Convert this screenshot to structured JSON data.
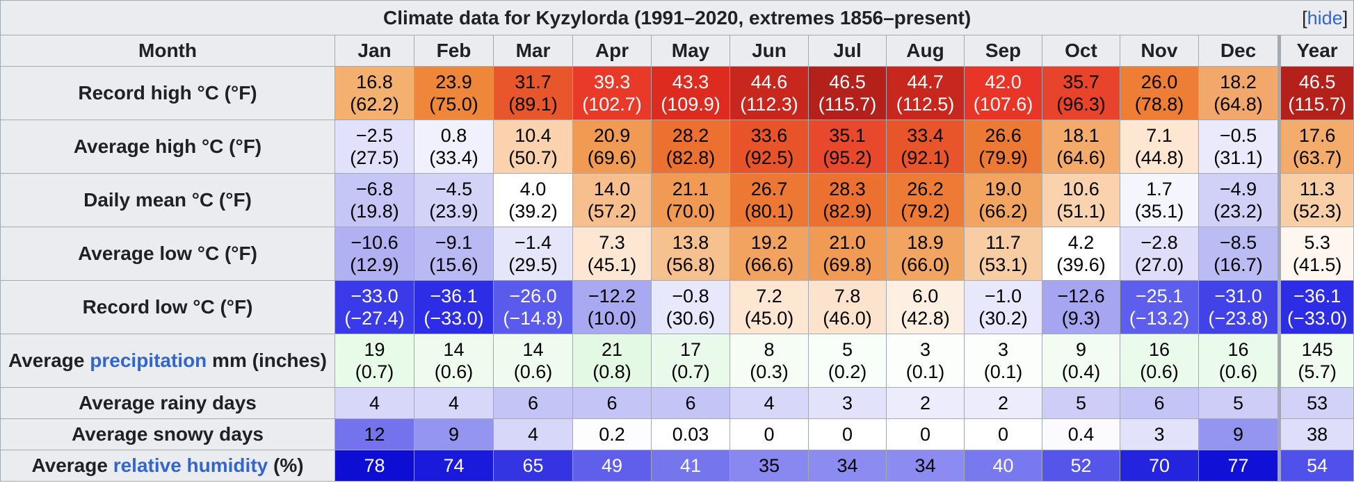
{
  "caption": {
    "title": "Climate data for Kyzylorda (1991–2020, extremes 1856–present)",
    "hide_open": "[",
    "hide_label": "hide",
    "hide_close": "]"
  },
  "header": {
    "month_label": "Month",
    "months": [
      "Jan",
      "Feb",
      "Mar",
      "Apr",
      "May",
      "Jun",
      "Jul",
      "Aug",
      "Sep",
      "Oct",
      "Nov",
      "Dec",
      "Year"
    ]
  },
  "rows": [
    {
      "id": "record-high",
      "label_parts": [
        {
          "t": "Record high °C (°F)",
          "link": false
        }
      ],
      "kind": "temp",
      "cells": [
        {
          "v": "16.8",
          "f": "(62.2)",
          "bg": "#f4b06f",
          "fg": "#000000"
        },
        {
          "v": "23.9",
          "f": "(75.0)",
          "bg": "#ee8739",
          "fg": "#000000"
        },
        {
          "v": "31.7",
          "f": "(89.1)",
          "bg": "#e8562c",
          "fg": "#000000"
        },
        {
          "v": "39.3",
          "f": "(102.7)",
          "bg": "#e93a29",
          "fg": "#ffffff"
        },
        {
          "v": "43.3",
          "f": "(109.9)",
          "bg": "#dd2b1f",
          "fg": "#ffffff"
        },
        {
          "v": "44.6",
          "f": "(112.3)",
          "bg": "#c8271d",
          "fg": "#ffffff"
        },
        {
          "v": "46.5",
          "f": "(115.7)",
          "bg": "#b3211a",
          "fg": "#ffffff"
        },
        {
          "v": "44.7",
          "f": "(112.5)",
          "bg": "#c8271d",
          "fg": "#ffffff"
        },
        {
          "v": "42.0",
          "f": "(107.6)",
          "bg": "#e93528",
          "fg": "#ffffff"
        },
        {
          "v": "35.7",
          "f": "(96.3)",
          "bg": "#e8432b",
          "fg": "#000000"
        },
        {
          "v": "26.0",
          "f": "(78.8)",
          "bg": "#ee7e35",
          "fg": "#000000"
        },
        {
          "v": "18.2",
          "f": "(64.8)",
          "bg": "#f2a86a",
          "fg": "#000000"
        },
        {
          "v": "46.5",
          "f": "(115.7)",
          "bg": "#b3211a",
          "fg": "#ffffff"
        }
      ]
    },
    {
      "id": "average-high",
      "label_parts": [
        {
          "t": "Average high °C (°F)",
          "link": false
        }
      ],
      "kind": "temp",
      "cells": [
        {
          "v": "−2.5",
          "f": "(27.5)",
          "bg": "#e1e1fb",
          "fg": "#000000"
        },
        {
          "v": "0.8",
          "f": "(33.4)",
          "bg": "#f1f1fd",
          "fg": "#000000"
        },
        {
          "v": "10.4",
          "f": "(50.7)",
          "bg": "#fad2ad",
          "fg": "#000000"
        },
        {
          "v": "20.9",
          "f": "(69.6)",
          "bg": "#f09a53",
          "fg": "#000000"
        },
        {
          "v": "28.2",
          "f": "(82.8)",
          "bg": "#ec7030",
          "fg": "#000000"
        },
        {
          "v": "33.6",
          "f": "(92.5)",
          "bg": "#e8532a",
          "fg": "#000000"
        },
        {
          "v": "35.1",
          "f": "(95.2)",
          "bg": "#e8482b",
          "fg": "#000000"
        },
        {
          "v": "33.4",
          "f": "(92.1)",
          "bg": "#e8552b",
          "fg": "#000000"
        },
        {
          "v": "26.6",
          "f": "(79.9)",
          "bg": "#ed7a34",
          "fg": "#000000"
        },
        {
          "v": "18.1",
          "f": "(64.6)",
          "bg": "#f3aa6a",
          "fg": "#000000"
        },
        {
          "v": "7.1",
          "f": "(44.8)",
          "bg": "#fde7d3",
          "fg": "#000000"
        },
        {
          "v": "−0.5",
          "f": "(31.1)",
          "bg": "#eaeafc",
          "fg": "#000000"
        },
        {
          "v": "17.6",
          "f": "(63.7)",
          "bg": "#f3ac6c",
          "fg": "#000000"
        }
      ]
    },
    {
      "id": "daily-mean",
      "label_parts": [
        {
          "t": "Daily mean °C (°F)",
          "link": false
        }
      ],
      "kind": "temp",
      "cells": [
        {
          "v": "−6.8",
          "f": "(19.8)",
          "bg": "#c5c5f6",
          "fg": "#000000"
        },
        {
          "v": "−4.5",
          "f": "(23.9)",
          "bg": "#d3d3f8",
          "fg": "#000000"
        },
        {
          "v": "4.0",
          "f": "(39.2)",
          "bg": "#ffffff",
          "fg": "#000000"
        },
        {
          "v": "14.0",
          "f": "(57.2)",
          "bg": "#f6bf8d",
          "fg": "#000000"
        },
        {
          "v": "21.1",
          "f": "(70.0)",
          "bg": "#f09a53",
          "fg": "#000000"
        },
        {
          "v": "26.7",
          "f": "(80.1)",
          "bg": "#ed7834",
          "fg": "#000000"
        },
        {
          "v": "28.3",
          "f": "(82.9)",
          "bg": "#ec7030",
          "fg": "#000000"
        },
        {
          "v": "26.2",
          "f": "(79.2)",
          "bg": "#ed7b35",
          "fg": "#000000"
        },
        {
          "v": "19.0",
          "f": "(66.2)",
          "bg": "#f2a561",
          "fg": "#000000"
        },
        {
          "v": "10.6",
          "f": "(51.1)",
          "bg": "#fad3ae",
          "fg": "#000000"
        },
        {
          "v": "1.7",
          "f": "(35.1)",
          "bg": "#f5f5fe",
          "fg": "#000000"
        },
        {
          "v": "−4.9",
          "f": "(23.2)",
          "bg": "#d1d1f8",
          "fg": "#000000"
        },
        {
          "v": "11.3",
          "f": "(52.3)",
          "bg": "#f9cfa7",
          "fg": "#000000"
        }
      ]
    },
    {
      "id": "average-low",
      "label_parts": [
        {
          "t": "Average low °C (°F)",
          "link": false
        }
      ],
      "kind": "temp",
      "cells": [
        {
          "v": "−10.6",
          "f": "(12.9)",
          "bg": "#b0b0f3",
          "fg": "#000000"
        },
        {
          "v": "−9.1",
          "f": "(15.6)",
          "bg": "#b9b9f4",
          "fg": "#000000"
        },
        {
          "v": "−1.4",
          "f": "(29.5)",
          "bg": "#e6e6fb",
          "fg": "#000000"
        },
        {
          "v": "7.3",
          "f": "(45.1)",
          "bg": "#fde6d2",
          "fg": "#000000"
        },
        {
          "v": "13.8",
          "f": "(56.8)",
          "bg": "#f6c08f",
          "fg": "#000000"
        },
        {
          "v": "19.2",
          "f": "(66.6)",
          "bg": "#f2a360",
          "fg": "#000000"
        },
        {
          "v": "21.0",
          "f": "(69.8)",
          "bg": "#f09a53",
          "fg": "#000000"
        },
        {
          "v": "18.9",
          "f": "(66.0)",
          "bg": "#f2a561",
          "fg": "#000000"
        },
        {
          "v": "11.7",
          "f": "(53.1)",
          "bg": "#f8cda4",
          "fg": "#000000"
        },
        {
          "v": "4.2",
          "f": "(39.6)",
          "bg": "#ffffff",
          "fg": "#000000"
        },
        {
          "v": "−2.8",
          "f": "(27.0)",
          "bg": "#dedefa",
          "fg": "#000000"
        },
        {
          "v": "−8.5",
          "f": "(16.7)",
          "bg": "#bcbcf5",
          "fg": "#000000"
        },
        {
          "v": "5.3",
          "f": "(41.5)",
          "bg": "#fff6ef",
          "fg": "#000000"
        }
      ]
    },
    {
      "id": "record-low",
      "label_parts": [
        {
          "t": "Record low °C (°F)",
          "link": false
        }
      ],
      "kind": "temp",
      "cells": [
        {
          "v": "−33.0",
          "f": "(−27.4)",
          "bg": "#3a3ae8",
          "fg": "#ffffff"
        },
        {
          "v": "−36.1",
          "f": "(−33.0)",
          "bg": "#2d2de6",
          "fg": "#ffffff"
        },
        {
          "v": "−26.0",
          "f": "(−14.8)",
          "bg": "#5a5aec",
          "fg": "#ffffff"
        },
        {
          "v": "−12.2",
          "f": "(10.0)",
          "bg": "#a9a9f1",
          "fg": "#000000"
        },
        {
          "v": "−0.8",
          "f": "(30.6)",
          "bg": "#e8e8fc",
          "fg": "#000000"
        },
        {
          "v": "7.2",
          "f": "(45.0)",
          "bg": "#fde6d2",
          "fg": "#000000"
        },
        {
          "v": "7.8",
          "f": "(46.0)",
          "bg": "#fce3cd",
          "fg": "#000000"
        },
        {
          "v": "6.0",
          "f": "(42.8)",
          "bg": "#feefe3",
          "fg": "#000000"
        },
        {
          "v": "−1.0",
          "f": "(30.2)",
          "bg": "#e8e8fc",
          "fg": "#000000"
        },
        {
          "v": "−12.6",
          "f": "(9.3)",
          "bg": "#a5a5f1",
          "fg": "#000000"
        },
        {
          "v": "−25.1",
          "f": "(−13.2)",
          "bg": "#5e5eec",
          "fg": "#ffffff"
        },
        {
          "v": "−31.0",
          "f": "(−23.8)",
          "bg": "#4242e9",
          "fg": "#ffffff"
        },
        {
          "v": "−36.1",
          "f": "(−33.0)",
          "bg": "#2d2de6",
          "fg": "#ffffff"
        }
      ]
    },
    {
      "id": "precipitation",
      "label_parts": [
        {
          "t": "Average ",
          "link": false
        },
        {
          "t": "precipitation",
          "link": true
        },
        {
          "t": " mm (inches)",
          "link": false
        }
      ],
      "kind": "temp",
      "cells": [
        {
          "v": "19",
          "f": "(0.7)",
          "bg": "#e8fae8",
          "fg": "#000000"
        },
        {
          "v": "14",
          "f": "(0.6)",
          "bg": "#eefbee",
          "fg": "#000000"
        },
        {
          "v": "14",
          "f": "(0.6)",
          "bg": "#eefbee",
          "fg": "#000000"
        },
        {
          "v": "21",
          "f": "(0.8)",
          "bg": "#e4f9e4",
          "fg": "#000000"
        },
        {
          "v": "17",
          "f": "(0.7)",
          "bg": "#eafaea",
          "fg": "#000000"
        },
        {
          "v": "8",
          "f": "(0.3)",
          "bg": "#f5fdf5",
          "fg": "#000000"
        },
        {
          "v": "5",
          "f": "(0.2)",
          "bg": "#f8fef8",
          "fg": "#000000"
        },
        {
          "v": "3",
          "f": "(0.1)",
          "bg": "#fbfefb",
          "fg": "#000000"
        },
        {
          "v": "3",
          "f": "(0.1)",
          "bg": "#fbfefb",
          "fg": "#000000"
        },
        {
          "v": "9",
          "f": "(0.4)",
          "bg": "#f3fcf3",
          "fg": "#000000"
        },
        {
          "v": "16",
          "f": "(0.6)",
          "bg": "#ebfbeb",
          "fg": "#000000"
        },
        {
          "v": "16",
          "f": "(0.6)",
          "bg": "#ebfbeb",
          "fg": "#000000"
        },
        {
          "v": "145",
          "f": "(5.7)",
          "bg": "#f0fcf0",
          "fg": "#000000"
        }
      ]
    },
    {
      "id": "rainy-days",
      "label_parts": [
        {
          "t": "Average rainy days",
          "link": false
        }
      ],
      "kind": "single",
      "cells": [
        {
          "v": "4",
          "bg": "#d7d7fa",
          "fg": "#000000"
        },
        {
          "v": "4",
          "bg": "#d7d7fa",
          "fg": "#000000"
        },
        {
          "v": "6",
          "bg": "#c4c4f7",
          "fg": "#000000"
        },
        {
          "v": "6",
          "bg": "#c4c4f7",
          "fg": "#000000"
        },
        {
          "v": "6",
          "bg": "#c4c4f7",
          "fg": "#000000"
        },
        {
          "v": "4",
          "bg": "#d7d7fa",
          "fg": "#000000"
        },
        {
          "v": "3",
          "bg": "#e2e2fb",
          "fg": "#000000"
        },
        {
          "v": "2",
          "bg": "#ececfd",
          "fg": "#000000"
        },
        {
          "v": "2",
          "bg": "#ececfd",
          "fg": "#000000"
        },
        {
          "v": "5",
          "bg": "#cdcdf8",
          "fg": "#000000"
        },
        {
          "v": "6",
          "bg": "#c4c4f7",
          "fg": "#000000"
        },
        {
          "v": "5",
          "bg": "#cdcdf8",
          "fg": "#000000"
        },
        {
          "v": "53",
          "bg": "#d2d2f9",
          "fg": "#000000"
        }
      ]
    },
    {
      "id": "snowy-days",
      "label_parts": [
        {
          "t": "Average snowy days",
          "link": false
        }
      ],
      "kind": "single",
      "cells": [
        {
          "v": "12",
          "bg": "#7373ed",
          "fg": "#000000"
        },
        {
          "v": "9",
          "bg": "#9494f1",
          "fg": "#000000"
        },
        {
          "v": "4",
          "bg": "#d7d7fa",
          "fg": "#000000"
        },
        {
          "v": "0.2",
          "bg": "#fdfdff",
          "fg": "#000000"
        },
        {
          "v": "0.03",
          "bg": "#ffffff",
          "fg": "#000000"
        },
        {
          "v": "0",
          "bg": "#ffffff",
          "fg": "#000000"
        },
        {
          "v": "0",
          "bg": "#ffffff",
          "fg": "#000000"
        },
        {
          "v": "0",
          "bg": "#ffffff",
          "fg": "#000000"
        },
        {
          "v": "0",
          "bg": "#ffffff",
          "fg": "#000000"
        },
        {
          "v": "0.4",
          "bg": "#fbfbff",
          "fg": "#000000"
        },
        {
          "v": "3",
          "bg": "#e2e2fb",
          "fg": "#000000"
        },
        {
          "v": "9",
          "bg": "#9494f1",
          "fg": "#000000"
        },
        {
          "v": "38",
          "bg": "#dedefb",
          "fg": "#000000"
        }
      ]
    },
    {
      "id": "relative-humidity",
      "label_parts": [
        {
          "t": "Average ",
          "link": false
        },
        {
          "t": "relative humidity",
          "link": true
        },
        {
          "t": " (%)",
          "link": false
        }
      ],
      "kind": "single",
      "cells": [
        {
          "v": "78",
          "bg": "#0d0dd4",
          "fg": "#ffffff"
        },
        {
          "v": "74",
          "bg": "#1a1adc",
          "fg": "#ffffff"
        },
        {
          "v": "65",
          "bg": "#3434e3",
          "fg": "#ffffff"
        },
        {
          "v": "49",
          "bg": "#5f5fec",
          "fg": "#ffffff"
        },
        {
          "v": "41",
          "bg": "#7575ee",
          "fg": "#ffffff"
        },
        {
          "v": "35",
          "bg": "#8888f0",
          "fg": "#000000"
        },
        {
          "v": "34",
          "bg": "#8b8bf1",
          "fg": "#000000"
        },
        {
          "v": "34",
          "bg": "#8b8bf1",
          "fg": "#000000"
        },
        {
          "v": "40",
          "bg": "#7878ef",
          "fg": "#ffffff"
        },
        {
          "v": "52",
          "bg": "#5555ea",
          "fg": "#ffffff"
        },
        {
          "v": "70",
          "bg": "#2424df",
          "fg": "#ffffff"
        },
        {
          "v": "77",
          "bg": "#1010d6",
          "fg": "#ffffff"
        },
        {
          "v": "54",
          "bg": "#5050ea",
          "fg": "#ffffff"
        }
      ]
    }
  ]
}
